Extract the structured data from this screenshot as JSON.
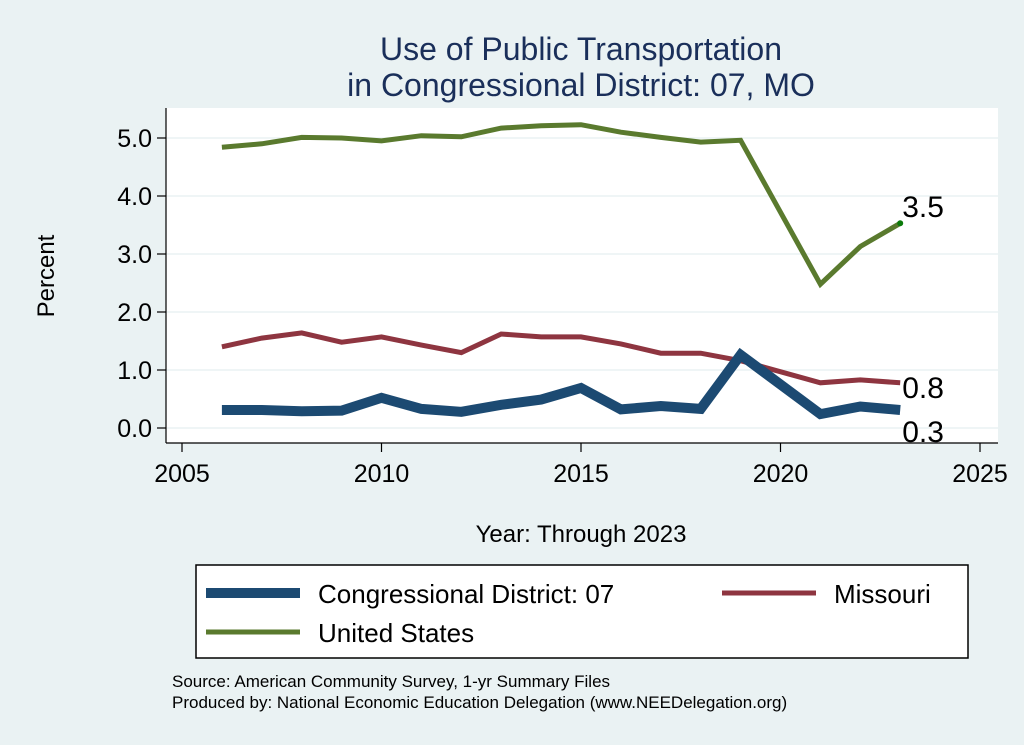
{
  "chart_data": {
    "type": "line",
    "title": [
      "Use of Public Transportation",
      "in Congressional District: 07, MO"
    ],
    "xlabel": "Year: Through 2023",
    "ylabel": "Percent",
    "xlim": [
      2005,
      2025
    ],
    "ylim": [
      0,
      5.5
    ],
    "xticks": [
      2005,
      2010,
      2015,
      2020,
      2025
    ],
    "yticks": [
      0,
      1,
      2,
      3,
      4,
      5
    ],
    "ytick_labels": [
      "0.0",
      "1.0",
      "2.0",
      "3.0",
      "4.0",
      "5.0"
    ],
    "grid": true,
    "legend_position": "bottom",
    "series": [
      {
        "name": "Congressional District: 07",
        "color": "#1c4a72",
        "x": [
          2006,
          2007,
          2008,
          2009,
          2010,
          2011,
          2012,
          2013,
          2014,
          2015,
          2016,
          2017,
          2018,
          2019,
          2021,
          2022,
          2023
        ],
        "values": [
          0.31,
          0.31,
          0.29,
          0.3,
          0.52,
          0.33,
          0.28,
          0.4,
          0.49,
          0.69,
          0.32,
          0.38,
          0.33,
          1.26,
          0.24,
          0.37,
          0.31
        ],
        "end_label": "0.3"
      },
      {
        "name": "Missouri",
        "color": "#8e3540",
        "x": [
          2006,
          2007,
          2008,
          2009,
          2010,
          2011,
          2012,
          2013,
          2014,
          2015,
          2016,
          2017,
          2018,
          2019,
          2021,
          2022,
          2023
        ],
        "values": [
          1.4,
          1.55,
          1.64,
          1.48,
          1.57,
          1.43,
          1.3,
          1.62,
          1.57,
          1.57,
          1.45,
          1.29,
          1.29,
          1.16,
          0.78,
          0.83,
          0.78
        ],
        "end_label": "0.8"
      },
      {
        "name": "United States",
        "color": "#5a7a2e",
        "x": [
          2006,
          2007,
          2008,
          2009,
          2010,
          2011,
          2012,
          2013,
          2014,
          2015,
          2016,
          2017,
          2018,
          2019,
          2021,
          2022,
          2023
        ],
        "values": [
          4.84,
          4.9,
          5.01,
          5.0,
          4.95,
          5.04,
          5.02,
          5.17,
          5.21,
          5.23,
          5.1,
          5.01,
          4.93,
          4.96,
          2.48,
          3.13,
          3.53
        ],
        "end_label": "3.5"
      }
    ],
    "legend": [
      {
        "label": "Congressional District: 07",
        "color": "#1c4a72"
      },
      {
        "label": "Missouri",
        "color": "#8e3540"
      },
      {
        "label": "United States",
        "color": "#5a7a2e"
      }
    ],
    "notes": [
      "Source: American Community Survey, 1-yr Summary Files",
      "Produced by: National Economic Education Delegation (www.NEEDelegation.org)"
    ]
  }
}
